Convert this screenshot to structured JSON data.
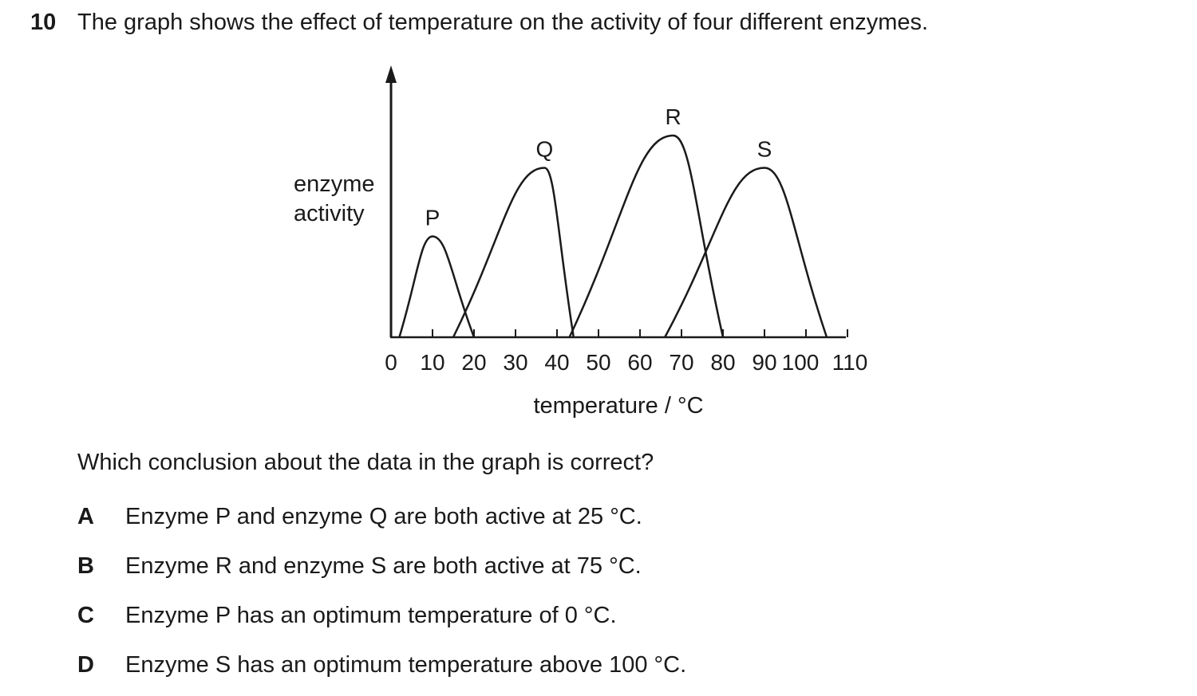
{
  "question": {
    "number": "10",
    "stem": "The graph shows the effect of temperature on the activity of four different enzymes.",
    "prompt": "Which conclusion about the data in the graph is correct?",
    "options": [
      {
        "letter": "A",
        "text": "Enzyme P and enzyme Q are both active at 25 °C."
      },
      {
        "letter": "B",
        "text": "Enzyme R and enzyme S are both active at 75 °C."
      },
      {
        "letter": "C",
        "text": "Enzyme P has an optimum temperature of 0 °C."
      },
      {
        "letter": "D",
        "text": "Enzyme S has an optimum temperature above 100 °C."
      }
    ]
  },
  "chart_data": {
    "type": "line",
    "title": "",
    "xlabel": "temperature / °C",
    "ylabel": "enzyme activity",
    "xticks": [
      "0",
      "10",
      "20",
      "30",
      "40",
      "50",
      "60",
      "70",
      "80",
      "90",
      "100",
      "110"
    ],
    "xlim": [
      0,
      110
    ],
    "ylim": [
      0,
      1
    ],
    "y_unlabelled": true,
    "grid": false,
    "series": [
      {
        "name": "P",
        "x": [
          2,
          10,
          20
        ],
        "y": [
          0,
          0.5,
          0
        ],
        "peak": [
          10,
          0.5
        ]
      },
      {
        "name": "Q",
        "x": [
          15,
          37,
          44
        ],
        "y": [
          0,
          0.84,
          0
        ],
        "peak": [
          37,
          0.84
        ]
      },
      {
        "name": "R",
        "x": [
          43,
          68,
          80
        ],
        "y": [
          0,
          1.0,
          0
        ],
        "peak": [
          68,
          1.0
        ]
      },
      {
        "name": "S",
        "x": [
          66,
          90,
          105
        ],
        "y": [
          0,
          0.84,
          0
        ],
        "peak": [
          90,
          0.84
        ]
      }
    ]
  }
}
